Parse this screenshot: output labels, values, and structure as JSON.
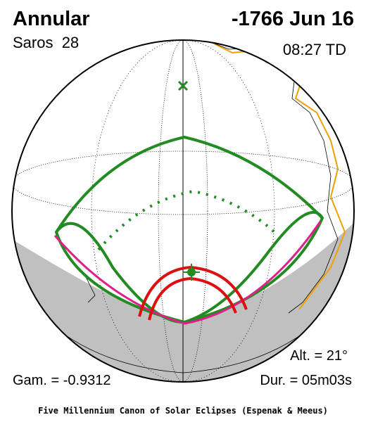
{
  "header": {
    "title": "Annular",
    "saros": "Saros  28",
    "date": "-1766 Jun 16",
    "time": "08:27 TD"
  },
  "footer_stats": {
    "altitude": "Alt. = 21°",
    "gamma": "Gam. = -0.9312",
    "duration": "Dur. = 05m03s"
  },
  "caption": "Five Millennium Canon of Solar Eclipses (Espenak & Meeus)"
}
